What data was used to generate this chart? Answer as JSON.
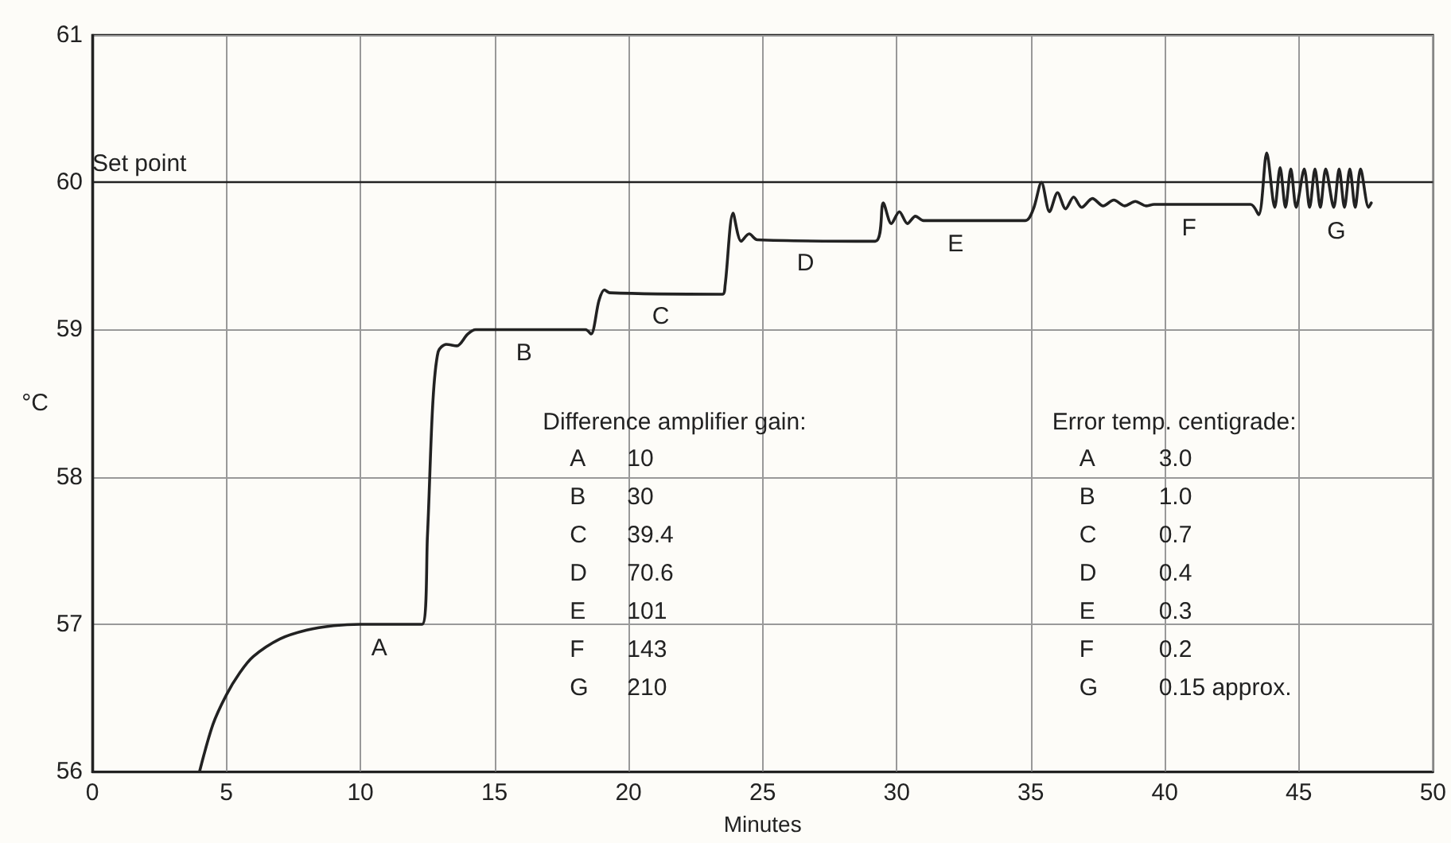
{
  "chart_data": {
    "type": "line",
    "xlabel": "Minutes",
    "ylabel": "°C",
    "xlim": [
      0,
      50
    ],
    "xticks": [
      0,
      5,
      10,
      15,
      20,
      25,
      30,
      35,
      40,
      45,
      50
    ],
    "ylim": [
      56,
      61
    ],
    "yticks": [
      56,
      57,
      58,
      59,
      60,
      61
    ],
    "grid": true,
    "marker": "none",
    "line_style": "solid",
    "series": [
      {
        "color": "#222222",
        "x": [
          4,
          4.5,
          5,
          5.5,
          6,
          7,
          8,
          9,
          10,
          12.3,
          12.5,
          12.7,
          12.9,
          13.2,
          13.6,
          14,
          14.3,
          18.4,
          18.6,
          18.9,
          19.1,
          19.3,
          23.5,
          23.6,
          23.9,
          24.2,
          24.5,
          24.8,
          29.2,
          29.5,
          29.8,
          30.1,
          30.4,
          30.7,
          31,
          34.8,
          35.1,
          35.4,
          35.7,
          36,
          36.3,
          36.6,
          36.9,
          37.3,
          37.7,
          38.1,
          38.5,
          38.9,
          39.3,
          39.6,
          43.2,
          43.5,
          43.8,
          44.1,
          44.3,
          44.5,
          44.7,
          44.9,
          45.2,
          45.4,
          45.6,
          45.8,
          46,
          46.3,
          46.5,
          46.7,
          46.9,
          47.1,
          47.3,
          47.6,
          47.7
        ],
        "values": [
          56,
          56.32,
          56.52,
          56.67,
          56.78,
          56.9,
          56.96,
          56.99,
          57,
          57,
          57.6,
          58.5,
          58.85,
          58.9,
          58.89,
          58.97,
          59,
          59,
          58.97,
          59.2,
          59.27,
          59.25,
          59.24,
          59.3,
          59.79,
          59.6,
          59.65,
          59.61,
          59.6,
          59.86,
          59.72,
          59.8,
          59.72,
          59.77,
          59.74,
          59.74,
          59.82,
          60,
          59.8,
          59.93,
          59.82,
          59.9,
          59.83,
          59.89,
          59.84,
          59.88,
          59.84,
          59.87,
          59.84,
          59.85,
          59.85,
          59.78,
          60.2,
          59.83,
          60.1,
          59.83,
          60.09,
          59.83,
          60.09,
          59.83,
          60.09,
          59.83,
          60.09,
          59.83,
          60.09,
          59.83,
          60.09,
          59.83,
          60.09,
          59.83,
          59.86
        ]
      }
    ],
    "ref_lines": [
      {
        "axis": "y",
        "value": 60,
        "label": "Set point",
        "color": "#222222"
      }
    ],
    "annotations": [
      {
        "text": "A",
        "x": 10.7,
        "y": 57
      },
      {
        "text": "B",
        "x": 16.1,
        "y": 59
      },
      {
        "text": "C",
        "x": 21.2,
        "y": 59.25
      },
      {
        "text": "D",
        "x": 26.6,
        "y": 59.61
      },
      {
        "text": "E",
        "x": 32.2,
        "y": 59.74
      },
      {
        "text": "F",
        "x": 40.9,
        "y": 59.85
      },
      {
        "text": "G",
        "x": 46.4,
        "y": 59.83
      },
      "Difference amplifier gain:",
      "A 10",
      "B 30",
      "C 39.4",
      "D 70.6",
      "E 101",
      "F 143",
      "G 210",
      "Error temp. centigrade:",
      "A 3.0",
      "B 1.0",
      "C 0.7",
      "D 0.4",
      "E 0.3",
      "F 0.2",
      "G 0.15 approx."
    ]
  }
}
